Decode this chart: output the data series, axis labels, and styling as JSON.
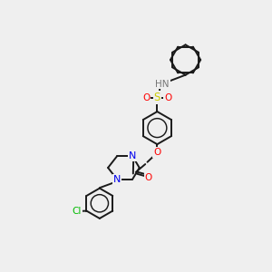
{
  "bg_color": "#efefef",
  "bond_color": "#1a1a1a",
  "atom_colors": {
    "N": "#0000ee",
    "O": "#ff0000",
    "S": "#cccc00",
    "Cl": "#00bb00",
    "H": "#777777",
    "C": "#1a1a1a"
  },
  "figsize": [
    3.0,
    3.0
  ],
  "dpi": 100,
  "xlim": [
    0,
    10
  ],
  "ylim": [
    0,
    10
  ]
}
